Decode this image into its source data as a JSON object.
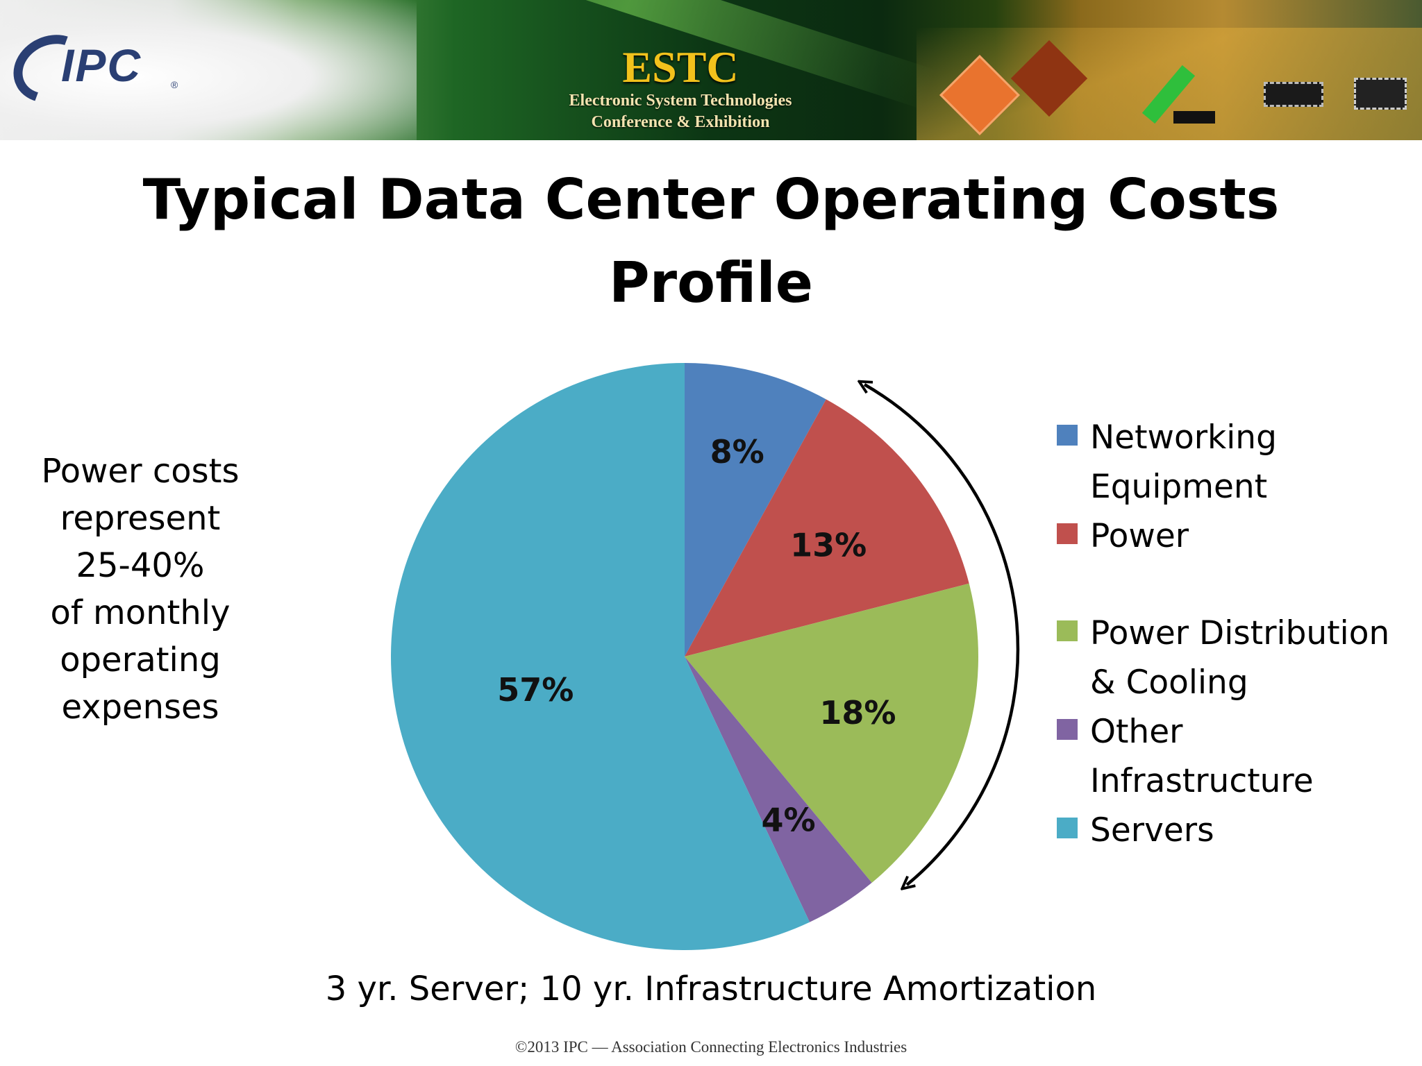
{
  "header": {
    "logo_text": "IPC",
    "logo_reg": "®",
    "event_title": "ESTC",
    "event_subtitle": "Electronic System Technologies\nConference & Exhibition"
  },
  "slide": {
    "title": "Typical Data Center Operating Costs\nProfile",
    "side_note": "Power costs\nrepresent\n25-40%\nof monthly\noperating\nexpenses",
    "footnote": "3 yr. Server; 10 yr. Infrastructure Amortization",
    "copyright": "©2013 IPC — Association Connecting Electronics Industries"
  },
  "chart_data": {
    "type": "pie",
    "categories": [
      "Networking Equipment",
      "Power",
      "Power Distribution & Cooling",
      "Other Infrastructure",
      "Servers"
    ],
    "values": [
      8,
      13,
      18,
      4,
      57
    ],
    "unit": "%",
    "data_labels": [
      "8%",
      "13%",
      "18%",
      "4%",
      "57%"
    ],
    "colors": [
      "#4f81bd",
      "#c0504d",
      "#9bbb59",
      "#8064a2",
      "#4bacc6"
    ],
    "legend": {
      "position": "right",
      "entries": [
        {
          "label": "Networking\nEquipment",
          "color": "#4f81bd"
        },
        {
          "label": "Power",
          "color": "#c0504d"
        },
        {
          "label": "Power Distribution\n& Cooling",
          "color": "#9bbb59"
        },
        {
          "label": "Other\nInfrastructure",
          "color": "#8064a2"
        },
        {
          "label": "Servers",
          "color": "#4bacc6"
        }
      ]
    },
    "annotation": "double-headed-arrow spanning Power through Other Infrastructure"
  }
}
